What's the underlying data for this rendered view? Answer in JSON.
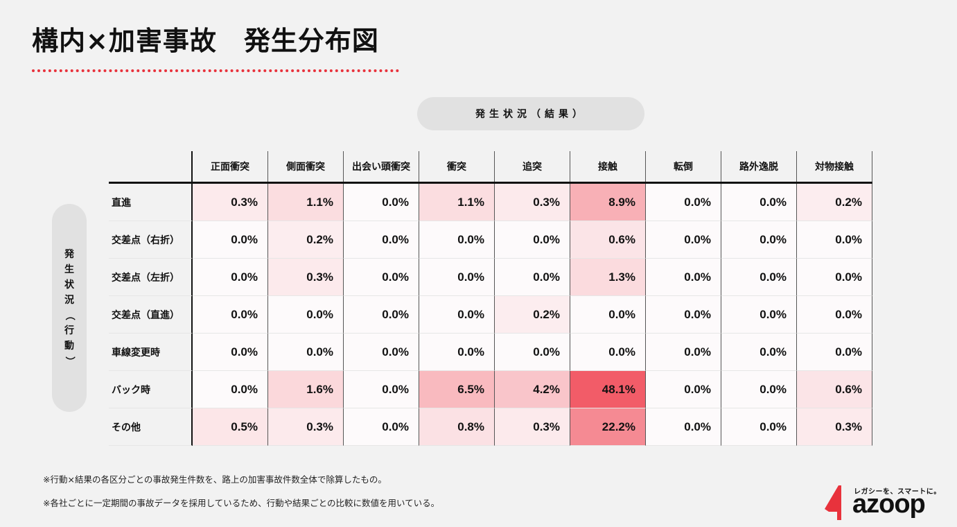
{
  "title": "構内×加害事故　発生分布図",
  "col_header_label": "発生状況（結果）",
  "row_header_label_chars": [
    "発",
    "生",
    "状",
    "況",
    "（",
    "行",
    "動",
    "）"
  ],
  "chart_data": {
    "type": "heatmap",
    "columns": [
      "正面衝突",
      "側面衝突",
      "出会い頭衝突",
      "衝突",
      "追突",
      "接触",
      "転倒",
      "路外逸脱",
      "対物接触"
    ],
    "rows": [
      "直進",
      "交差点（右折）",
      "交差点（左折）",
      "交差点（直進）",
      "車線変更時",
      "バック時",
      "その他"
    ],
    "values": [
      [
        0.3,
        1.1,
        0.0,
        1.1,
        0.3,
        8.9,
        0.0,
        0.0,
        0.2
      ],
      [
        0.0,
        0.2,
        0.0,
        0.0,
        0.0,
        0.6,
        0.0,
        0.0,
        0.0
      ],
      [
        0.0,
        0.3,
        0.0,
        0.0,
        0.0,
        1.3,
        0.0,
        0.0,
        0.0
      ],
      [
        0.0,
        0.0,
        0.0,
        0.0,
        0.2,
        0.0,
        0.0,
        0.0,
        0.0
      ],
      [
        0.0,
        0.0,
        0.0,
        0.0,
        0.0,
        0.0,
        0.0,
        0.0,
        0.0
      ],
      [
        0.0,
        1.6,
        0.0,
        6.5,
        4.2,
        48.1,
        0.0,
        0.0,
        0.6
      ],
      [
        0.5,
        0.3,
        0.0,
        0.8,
        0.3,
        22.2,
        0.0,
        0.0,
        0.3
      ]
    ],
    "labels": [
      [
        "0.3%",
        "1.1%",
        "0.0%",
        "1.1%",
        "0.3%",
        "8.9%",
        "0.0%",
        "0.0%",
        "0.2%"
      ],
      [
        "0.0%",
        "0.2%",
        "0.0%",
        "0.0%",
        "0.0%",
        "0.6%",
        "0.0%",
        "0.0%",
        "0.0%"
      ],
      [
        "0.0%",
        "0.3%",
        "0.0%",
        "0.0%",
        "0.0%",
        "1.3%",
        "0.0%",
        "0.0%",
        "0.0%"
      ],
      [
        "0.0%",
        "0.0%",
        "0.0%",
        "0.0%",
        "0.2%",
        "0.0%",
        "0.0%",
        "0.0%",
        "0.0%"
      ],
      [
        "0.0%",
        "0.0%",
        "0.0%",
        "0.0%",
        "0.0%",
        "0.0%",
        "0.0%",
        "0.0%",
        "0.0%"
      ],
      [
        "0.0%",
        "1.6%",
        "0.0%",
        "6.5%",
        "4.2%",
        "48.1%",
        "0.0%",
        "0.0%",
        "0.6%"
      ],
      [
        "0.5%",
        "0.3%",
        "0.0%",
        "0.8%",
        "0.3%",
        "22.2%",
        "0.0%",
        "0.0%",
        "0.3%"
      ]
    ],
    "color_low": "#fdfafb",
    "color_high": "#f25c68"
  },
  "footnotes": [
    "※行動×結果の各区分ごとの事故発生件数を、路上の加害事故件数全体で除算したもの。",
    "※各社ごとに一定期間の事故データを採用しているため、行動や結果ごとの比較に数値を用いている。"
  ],
  "logo": {
    "tagline": "レガシーを、スマートに。",
    "word": "azoop",
    "accent": "#e8323c"
  },
  "colors": {
    "title_underline": "#e8323c",
    "pill": "#e1e1e1",
    "background": "#f2f2f2"
  }
}
